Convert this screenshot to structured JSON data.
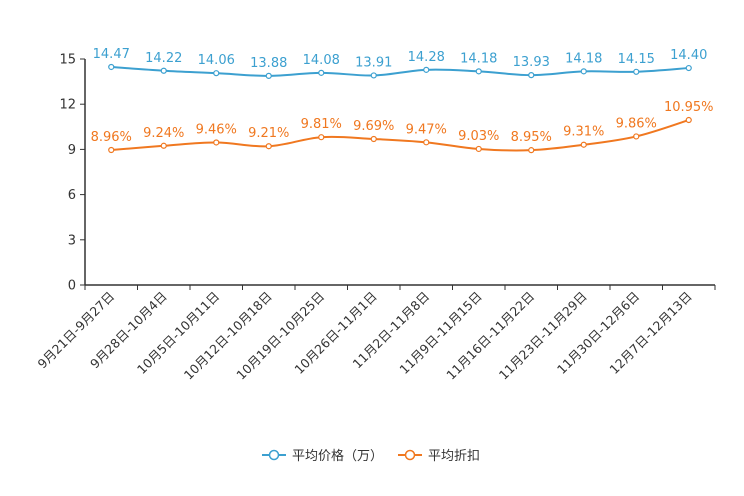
{
  "chart_data": {
    "type": "line",
    "title": "",
    "xlabel": "",
    "ylabel": "",
    "ylim": [
      0,
      15
    ],
    "yticks": [
      0,
      3,
      6,
      9,
      12,
      15
    ],
    "grid": false,
    "legend_position": "bottom-center",
    "categories": [
      "9月21日-9月27日",
      "9月28日-10月4日",
      "10月5日-10月11日",
      "10月12日-10月18日",
      "10月19日-10月25日",
      "10月26日-11月1日",
      "11月2日-11月8日",
      "11月9日-11月15日",
      "11月16日-11月22日",
      "11月23日-11月29日",
      "11月30日-12月6日",
      "12月7日-12月13日"
    ],
    "series": [
      {
        "name": "平均价格（万）",
        "color": "#3ca0d0",
        "values": [
          14.47,
          14.22,
          14.06,
          13.88,
          14.08,
          13.91,
          14.28,
          14.18,
          13.93,
          14.18,
          14.15,
          14.4
        ],
        "labels": [
          "14.47",
          "14.22",
          "14.06",
          "13.88",
          "14.08",
          "13.91",
          "14.28",
          "14.18",
          "13.93",
          "14.18",
          "14.15",
          "14.40"
        ]
      },
      {
        "name": "平均折扣",
        "color": "#f07820",
        "values": [
          8.96,
          9.24,
          9.46,
          9.21,
          9.81,
          9.69,
          9.47,
          9.03,
          8.95,
          9.31,
          9.86,
          10.95
        ],
        "labels": [
          "8.96%",
          "9.24%",
          "9.46%",
          "9.21%",
          "9.81%",
          "9.69%",
          "9.47%",
          "9.03%",
          "8.95%",
          "9.31%",
          "9.86%",
          "10.95%"
        ]
      }
    ]
  }
}
